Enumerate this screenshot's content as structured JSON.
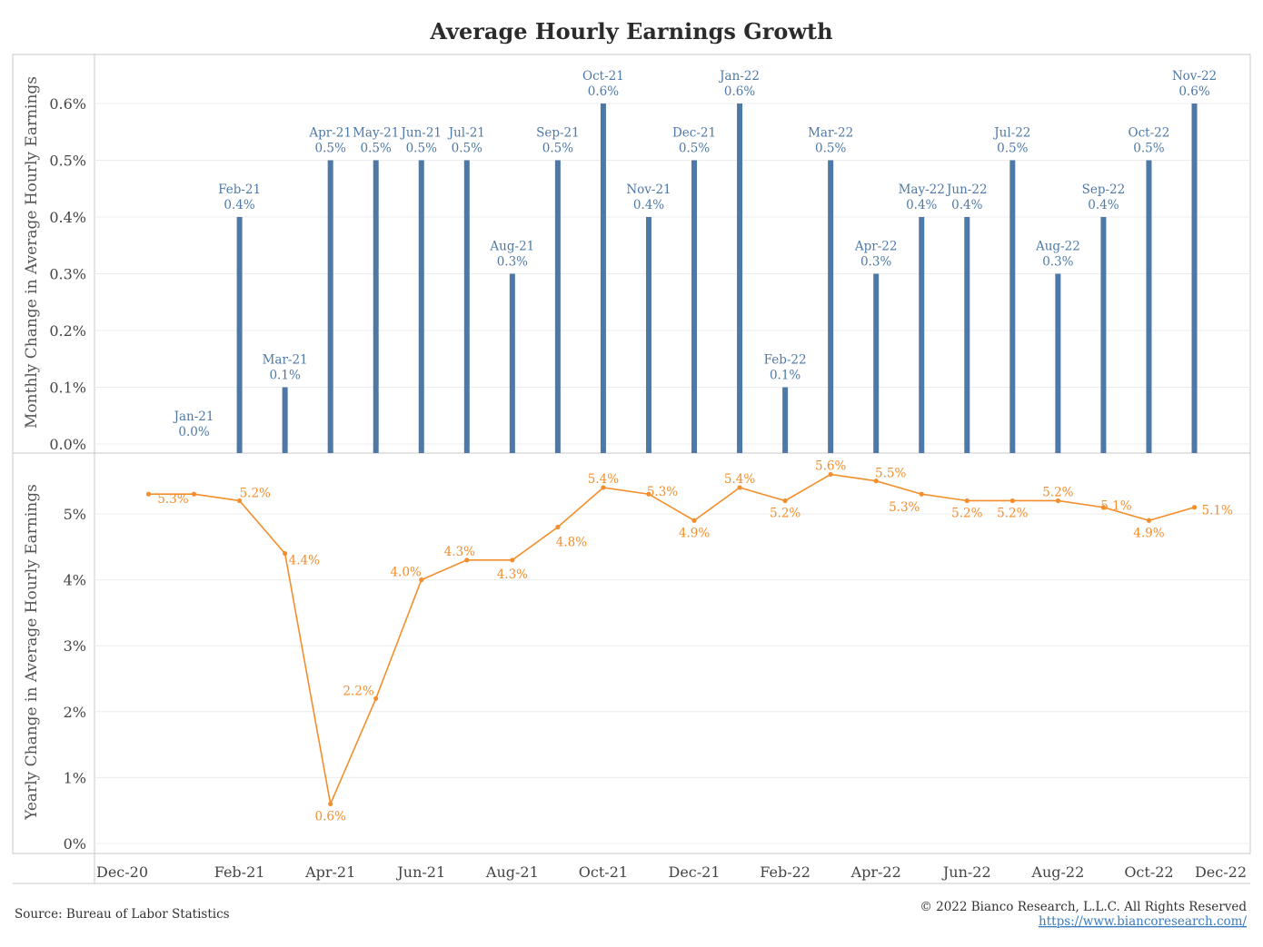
{
  "title": "Average Hourly Earnings Growth",
  "source": "Source: Bureau of Labor Statistics",
  "copyright": "© 2022 Bianco Research, L.L.C. All Rights Reserved",
  "website": "https://www.biancoresearch.com/",
  "colors": {
    "bar": "#4e79a7",
    "line": "#f28e2b",
    "grid": "#ececec",
    "axis": "#c8c8c8"
  },
  "chart_data": [
    {
      "type": "bar",
      "ylabel": "Monthly Change in Average Hourly Earnings",
      "ylim": [
        0,
        0.6
      ],
      "yticks": [
        "0.0%",
        "0.1%",
        "0.2%",
        "0.3%",
        "0.4%",
        "0.5%",
        "0.6%"
      ],
      "grid": true,
      "categories": [
        "Jan-21",
        "Feb-21",
        "Mar-21",
        "Apr-21",
        "May-21",
        "Jun-21",
        "Jul-21",
        "Aug-21",
        "Sep-21",
        "Oct-21",
        "Nov-21",
        "Dec-21",
        "Jan-22",
        "Feb-22",
        "Mar-22",
        "Apr-22",
        "May-22",
        "Jun-22",
        "Jul-22",
        "Aug-22",
        "Sep-22",
        "Oct-22",
        "Nov-22"
      ],
      "values": [
        0.0,
        0.4,
        0.1,
        0.5,
        0.5,
        0.5,
        0.5,
        0.3,
        0.5,
        0.6,
        0.4,
        0.5,
        0.6,
        0.1,
        0.5,
        0.3,
        0.4,
        0.4,
        0.5,
        0.3,
        0.4,
        0.5,
        0.6
      ],
      "value_labels": [
        "0.0%",
        "0.4%",
        "0.1%",
        "0.5%",
        "0.5%",
        "0.5%",
        "0.5%",
        "0.3%",
        "0.5%",
        "0.6%",
        "0.4%",
        "0.5%",
        "0.6%",
        "0.1%",
        "0.5%",
        "0.3%",
        "0.4%",
        "0.4%",
        "0.5%",
        "0.3%",
        "0.4%",
        "0.5%",
        "0.6%"
      ]
    },
    {
      "type": "line",
      "ylabel": "Yearly Change in Average Hourly Earnings",
      "ylim": [
        0,
        5.6
      ],
      "yticks": [
        "0%",
        "1%",
        "2%",
        "3%",
        "4%",
        "5%"
      ],
      "grid": true,
      "x": [
        "Dec-20",
        "Jan-21",
        "Feb-21",
        "Mar-21",
        "Apr-21",
        "May-21",
        "Jun-21",
        "Jul-21",
        "Aug-21",
        "Sep-21",
        "Oct-21",
        "Nov-21",
        "Dec-21",
        "Jan-22",
        "Feb-22",
        "Mar-22",
        "Apr-22",
        "May-22",
        "Jun-22",
        "Jul-22",
        "Aug-22",
        "Sep-22",
        "Oct-22",
        "Nov-22"
      ],
      "values": [
        5.3,
        5.3,
        5.2,
        4.4,
        0.6,
        2.2,
        4.0,
        4.3,
        4.3,
        4.8,
        5.4,
        5.3,
        4.9,
        5.4,
        5.2,
        5.6,
        5.5,
        5.3,
        5.2,
        5.2,
        5.2,
        5.1,
        4.9,
        5.1
      ],
      "value_labels": [
        "",
        "5.3%",
        "5.2%",
        "4.4%",
        "0.6%",
        "2.2%",
        "4.0%",
        "4.3%",
        "4.3%",
        "4.8%",
        "5.4%",
        "5.3%",
        "4.9%",
        "5.4%",
        "5.2%",
        "5.6%",
        "5.5%",
        "5.3%",
        "5.2%",
        "5.2%",
        "5.2%",
        "5.1%",
        "4.9%",
        "5.1%"
      ],
      "xticks": [
        "Dec-20",
        "Feb-21",
        "Apr-21",
        "Jun-21",
        "Aug-21",
        "Oct-21",
        "Dec-21",
        "Feb-22",
        "Apr-22",
        "Jun-22",
        "Aug-22",
        "Oct-22",
        "Dec-22"
      ]
    }
  ]
}
